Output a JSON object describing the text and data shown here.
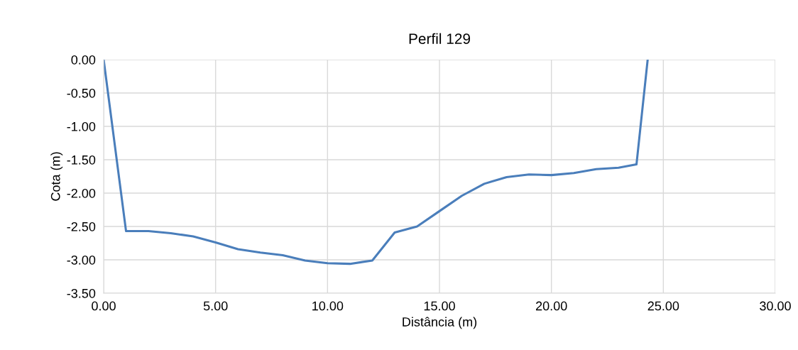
{
  "chart_data": {
    "type": "line",
    "title": "Perfil 129",
    "xlabel": "Distância (m)",
    "ylabel": "Cota (m)",
    "x": [
      0,
      1,
      2,
      3,
      4,
      5,
      6,
      7,
      8,
      9,
      10,
      11,
      12,
      13,
      14,
      15,
      16,
      17,
      18,
      19,
      20,
      21,
      22,
      23,
      23.8,
      24.3
    ],
    "series": [
      {
        "color": "#4a7ebb",
        "values": [
          0,
          -2.57,
          -2.57,
          -2.6,
          -2.65,
          -2.74,
          -2.84,
          -2.89,
          -2.93,
          -3.01,
          -3.05,
          -3.06,
          -3.01,
          -2.59,
          -2.5,
          -2.27,
          -2.04,
          -1.86,
          -1.76,
          -1.72,
          -1.73,
          -1.7,
          -1.64,
          -1.62,
          -1.57,
          0
        ]
      }
    ],
    "xlim": [
      0,
      30
    ],
    "xticks": [
      {
        "value": 0,
        "label": "0.00"
      },
      {
        "value": 5,
        "label": "5.00"
      },
      {
        "value": 10,
        "label": "10.00"
      },
      {
        "value": 15,
        "label": "15.00"
      },
      {
        "value": 20,
        "label": "20.00"
      },
      {
        "value": 25,
        "label": "25.00"
      },
      {
        "value": 30,
        "label": "30.00"
      }
    ],
    "ylim": [
      -3.5,
      0
    ],
    "yticks": [
      {
        "value": -3.5,
        "label": "-3.50"
      },
      {
        "value": -3,
        "label": "-3.00"
      },
      {
        "value": -2.5,
        "label": "-2.50"
      },
      {
        "value": -2,
        "label": "-2.00"
      },
      {
        "value": -1.5,
        "label": "-1.50"
      },
      {
        "value": -1,
        "label": "-1.00"
      },
      {
        "value": -0.5,
        "label": "-0.50"
      },
      {
        "value": 0,
        "label": "0.00"
      }
    ],
    "grid": true,
    "legend": false
  }
}
